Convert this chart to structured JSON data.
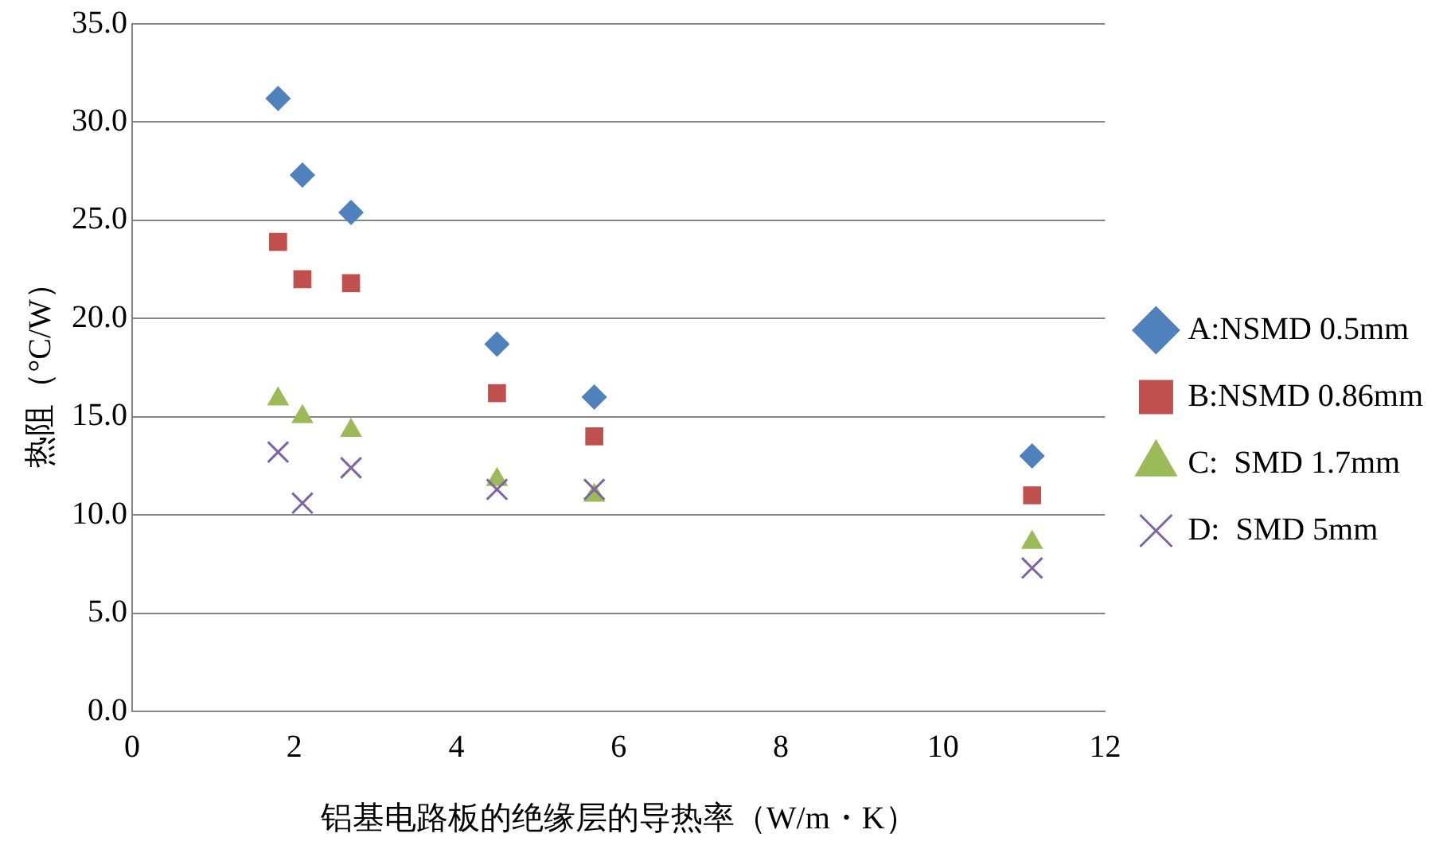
{
  "chart_data": {
    "type": "scatter",
    "xlabel": "铝基电路板的绝缘层的导热率（W/m・K）",
    "ylabel": "热阻（°C/W）",
    "x": [
      1.8,
      2.1,
      2.7,
      4.5,
      5.7,
      11.1
    ],
    "series": [
      {
        "name": "A:NSMD 0.5mm",
        "color": "#4f81bd",
        "marker": "diamond",
        "values": [
          31.2,
          27.3,
          25.4,
          18.7,
          16.0,
          13.0
        ]
      },
      {
        "name": "B:NSMD 0.86mm",
        "color": "#c0504d",
        "marker": "square",
        "values": [
          23.9,
          22.0,
          21.8,
          16.2,
          14.0,
          11.0
        ]
      },
      {
        "name": "C:  SMD 1.7mm",
        "color": "#9bbb59",
        "marker": "triangle",
        "values": [
          15.9,
          15.0,
          14.3,
          11.8,
          11.0,
          8.6
        ]
      },
      {
        "name": "D:  SMD 5mm",
        "color": "#8064a2",
        "marker": "cross",
        "values": [
          13.2,
          10.6,
          12.4,
          11.3,
          11.3,
          7.3
        ]
      }
    ],
    "xlim": [
      0,
      12
    ],
    "xticks": [
      0,
      2,
      4,
      6,
      8,
      10,
      12
    ],
    "ylim": [
      0,
      35
    ],
    "yticks": [
      {
        "value": 0,
        "label": "0.0"
      },
      {
        "value": 5,
        "label": "5.0"
      },
      {
        "value": 10,
        "label": "10.0"
      },
      {
        "value": 15,
        "label": "15.0"
      },
      {
        "value": 20,
        "label": "20.0"
      },
      {
        "value": 25,
        "label": "25.0"
      },
      {
        "value": 30,
        "label": "30.0"
      },
      {
        "value": 35,
        "label": "35.0"
      }
    ],
    "grid": "y",
    "legend": "right"
  }
}
